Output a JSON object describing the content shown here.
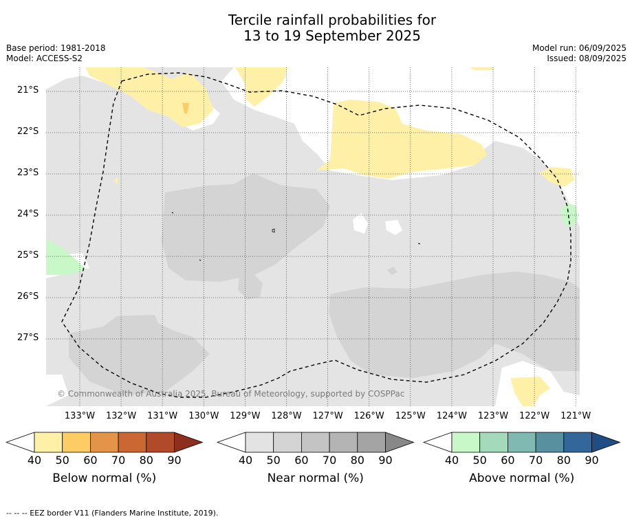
{
  "title_line1": "Tercile rainfall probabilities for",
  "title_line2": "13 to 19 September 2025",
  "base_period": "Base period: 1981-2018",
  "model": "Model: ACCESS-S2",
  "model_run": "Model run: 06/09/2025",
  "issued": "Issued: 08/09/2025",
  "latitudes": [
    "21°S",
    "22°S",
    "23°S",
    "24°S",
    "25°S",
    "26°S",
    "27°S"
  ],
  "longitudes": [
    "133°W",
    "132°W",
    "131°W",
    "130°W",
    "129°W",
    "128°W",
    "127°W",
    "126°W",
    "125°W",
    "124°W",
    "123°W",
    "122°W",
    "121°W"
  ],
  "copyright": "© Commonwealth of Australia 2025, Bureau of Meteorology, supported by COSPPac",
  "colorbars": [
    {
      "label": "Below normal (%)",
      "ticks": [
        "40",
        "50",
        "60",
        "70",
        "80",
        "90"
      ],
      "colors": [
        "#fff0a8",
        "#fdcc65",
        "#e39448",
        "#cb6733",
        "#b04a28",
        "#8c2f1f"
      ]
    },
    {
      "label": "Near normal (%)",
      "ticks": [
        "40",
        "50",
        "60",
        "70",
        "80",
        "90"
      ],
      "colors": [
        "#e3e3e3",
        "#d4d4d4",
        "#c4c4c4",
        "#b4b4b4",
        "#a4a4a4",
        "#888888"
      ]
    },
    {
      "label": "Above normal (%)",
      "ticks": [
        "40",
        "50",
        "60",
        "70",
        "80",
        "90"
      ],
      "colors": [
        "#c8f7c8",
        "#a4d9bc",
        "#80b8b2",
        "#5890a0",
        "#336699",
        "#1f4e85"
      ]
    }
  ],
  "footer": "--  --  -- EEZ border V11 (Flanders Marine Institute, 2019)."
}
